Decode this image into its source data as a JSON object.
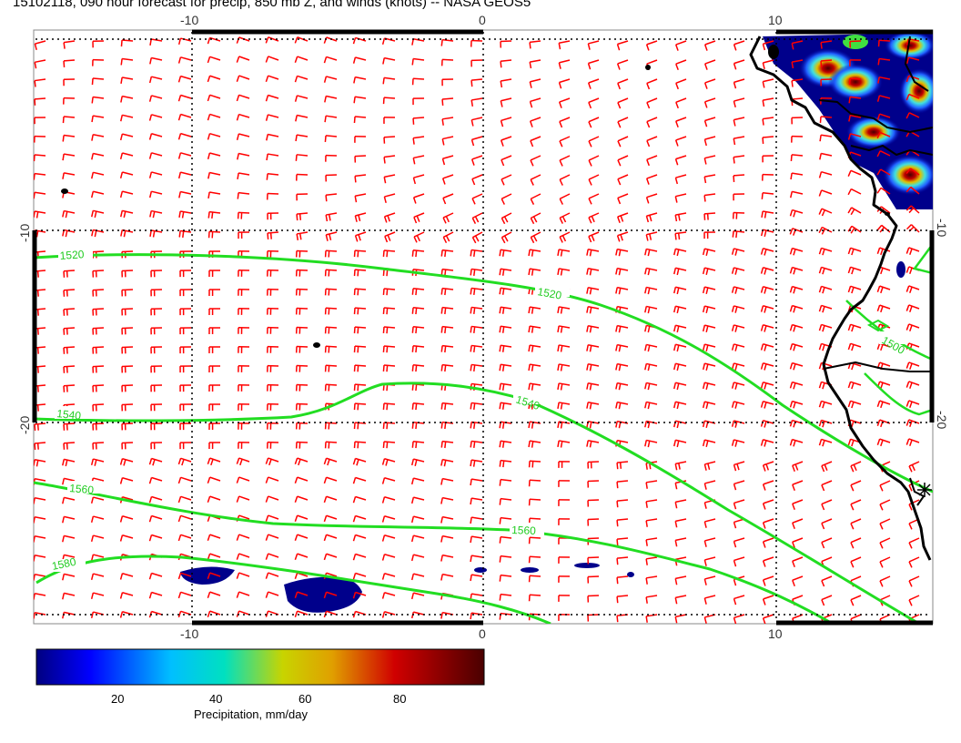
{
  "title": "15102118, 090 hour forecast for precip, 850 mb Z, and winds (knots) -- NASA GEOS5",
  "map": {
    "lon_ticks": [
      "-10",
      "0",
      "10"
    ],
    "lat_ticks": [
      "-10",
      "-20"
    ],
    "grid_lines": "dotted",
    "colors": {
      "wind_barbs": "#ff0000",
      "contours": "#22dd22",
      "coastline": "#000000",
      "precip_low": "#00008b",
      "precip_high": "#8b0000"
    }
  },
  "contours": [
    {
      "label": "1520"
    },
    {
      "label": "1520"
    },
    {
      "label": "1540"
    },
    {
      "label": "1540"
    },
    {
      "label": "1560"
    },
    {
      "label": "1560"
    },
    {
      "label": "1580"
    },
    {
      "label": "1500"
    }
  ],
  "colorbar": {
    "ticks": [
      "20",
      "40",
      "60",
      "80"
    ],
    "label": "Precipitation, mm/day"
  }
}
